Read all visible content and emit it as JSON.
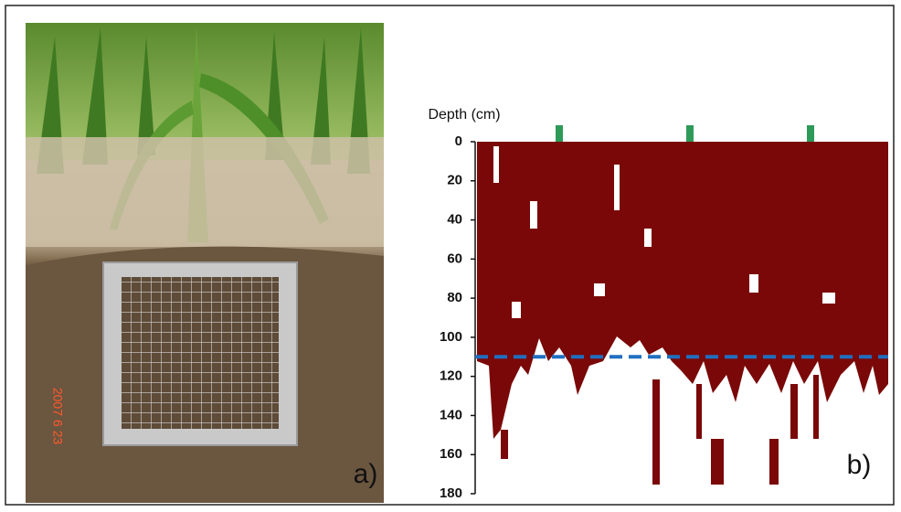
{
  "panel_a": {
    "label": "a)",
    "date_stamp": "2007 6 23"
  },
  "chart_data": {
    "type": "root-map",
    "ylabel": "Depth (cm)",
    "ylim": [
      0,
      180
    ],
    "yticks": [
      0,
      20,
      40,
      60,
      80,
      100,
      120,
      140,
      160,
      180
    ],
    "reference_depth": 110,
    "reference_color": "#1f6fc0",
    "root_color": "#7a0808",
    "panel_label": "b)"
  }
}
